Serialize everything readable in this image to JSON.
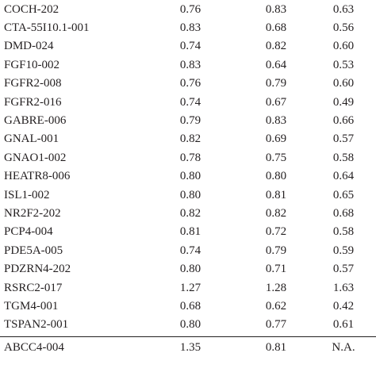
{
  "table": {
    "rows": [
      [
        "COCH-202",
        "0.76",
        "0.83",
        "0.63"
      ],
      [
        "CTA-55I10.1-001",
        "0.83",
        "0.68",
        "0.56"
      ],
      [
        "DMD-024",
        "0.74",
        "0.82",
        "0.60"
      ],
      [
        "FGF10-002",
        "0.83",
        "0.64",
        "0.53"
      ],
      [
        "FGFR2-008",
        "0.76",
        "0.79",
        "0.60"
      ],
      [
        "FGFR2-016",
        "0.74",
        "0.67",
        "0.49"
      ],
      [
        "GABRE-006",
        "0.79",
        "0.83",
        "0.66"
      ],
      [
        "GNAL-001",
        "0.82",
        "0.69",
        "0.57"
      ],
      [
        "GNAO1-002",
        "0.78",
        "0.75",
        "0.58"
      ],
      [
        "HEATR8-006",
        "0.80",
        "0.80",
        "0.64"
      ],
      [
        "ISL1-002",
        "0.80",
        "0.81",
        "0.65"
      ],
      [
        "NR2F2-202",
        "0.82",
        "0.82",
        "0.68"
      ],
      [
        "PCP4-004",
        "0.81",
        "0.72",
        "0.58"
      ],
      [
        "PDE5A-005",
        "0.74",
        "0.79",
        "0.59"
      ],
      [
        "PDZRN4-202",
        "0.80",
        "0.71",
        "0.57"
      ],
      [
        "RSRC2-017",
        "1.27",
        "1.28",
        "1.63"
      ],
      [
        "TGM4-001",
        "0.68",
        "0.62",
        "0.42"
      ],
      [
        "TSPAN2-001",
        "0.80",
        "0.77",
        "0.61"
      ],
      [
        "ABCC4-004",
        "1.35",
        "0.81",
        "N.A."
      ]
    ]
  }
}
